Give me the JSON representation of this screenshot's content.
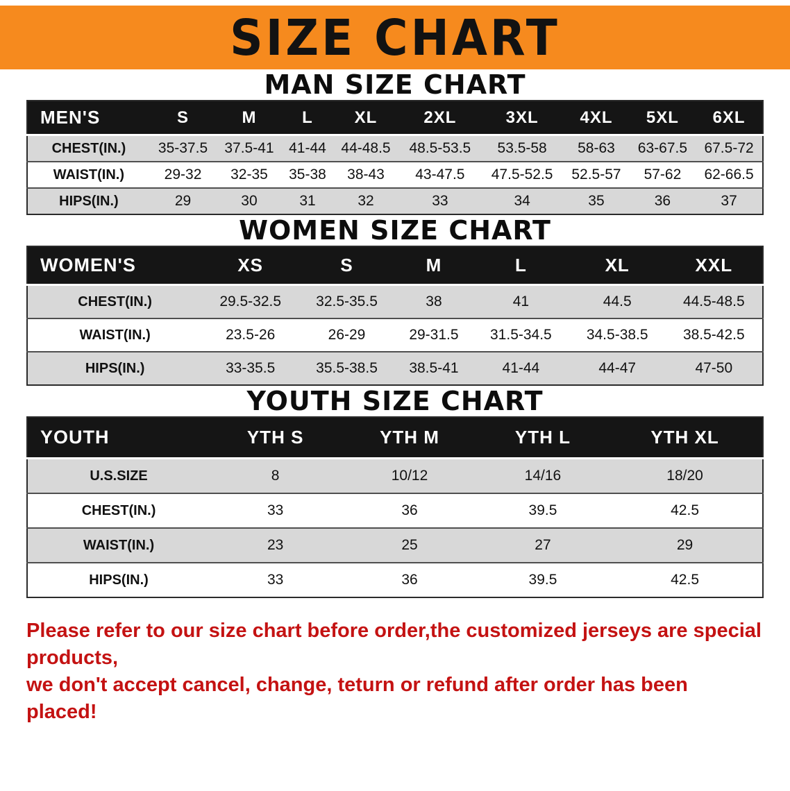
{
  "banner": {
    "title": "SIZE CHART"
  },
  "chart_data": [
    {
      "type": "table",
      "title": "MAN SIZE CHART",
      "corner_label": "MEN'S",
      "columns": [
        "S",
        "M",
        "L",
        "XL",
        "2XL",
        "3XL",
        "4XL",
        "5XL",
        "6XL"
      ],
      "rows": [
        {
          "label": "CHEST(IN.)",
          "values": [
            "35-37.5",
            "37.5-41",
            "41-44",
            "44-48.5",
            "48.5-53.5",
            "53.5-58",
            "58-63",
            "63-67.5",
            "67.5-72"
          ]
        },
        {
          "label": "WAIST(IN.)",
          "values": [
            "29-32",
            "32-35",
            "35-38",
            "38-43",
            "43-47.5",
            "47.5-52.5",
            "52.5-57",
            "57-62",
            "62-66.5"
          ]
        },
        {
          "label": "HIPS(IN.)",
          "values": [
            "29",
            "30",
            "31",
            "32",
            "33",
            "34",
            "35",
            "36",
            "37"
          ]
        }
      ]
    },
    {
      "type": "table",
      "title": "WOMEN SIZE CHART",
      "corner_label": "WOMEN'S",
      "columns": [
        "XS",
        "S",
        "M",
        "L",
        "XL",
        "XXL"
      ],
      "rows": [
        {
          "label": "CHEST(IN.)",
          "values": [
            "29.5-32.5",
            "32.5-35.5",
            "38",
            "41",
            "44.5",
            "44.5-48.5"
          ]
        },
        {
          "label": "WAIST(IN.)",
          "values": [
            "23.5-26",
            "26-29",
            "29-31.5",
            "31.5-34.5",
            "34.5-38.5",
            "38.5-42.5"
          ]
        },
        {
          "label": "HIPS(IN.)",
          "values": [
            "33-35.5",
            "35.5-38.5",
            "38.5-41",
            "41-44",
            "44-47",
            "47-50"
          ]
        }
      ]
    },
    {
      "type": "table",
      "title": "YOUTH SIZE CHART",
      "corner_label": "YOUTH",
      "columns": [
        "YTH S",
        "YTH M",
        "YTH L",
        "YTH XL"
      ],
      "rows": [
        {
          "label": "U.S.SIZE",
          "values": [
            "8",
            "10/12",
            "14/16",
            "18/20"
          ]
        },
        {
          "label": "CHEST(IN.)",
          "values": [
            "33",
            "36",
            "39.5",
            "42.5"
          ]
        },
        {
          "label": "WAIST(IN.)",
          "values": [
            "23",
            "25",
            "27",
            "29"
          ]
        },
        {
          "label": "HIPS(IN.)",
          "values": [
            "33",
            "36",
            "39.5",
            "42.5"
          ]
        }
      ]
    }
  ],
  "footer": {
    "line1": "Please refer to our size chart before order,the customized jerseys are special products,",
    "line2": "we don't accept cancel, change, teturn or refund after order has been placed!"
  },
  "colors": {
    "banner_orange": "#f68a1e",
    "table_header_black": "#151515",
    "row_gray": "#d8d8d8",
    "notice_red": "#c41212"
  }
}
